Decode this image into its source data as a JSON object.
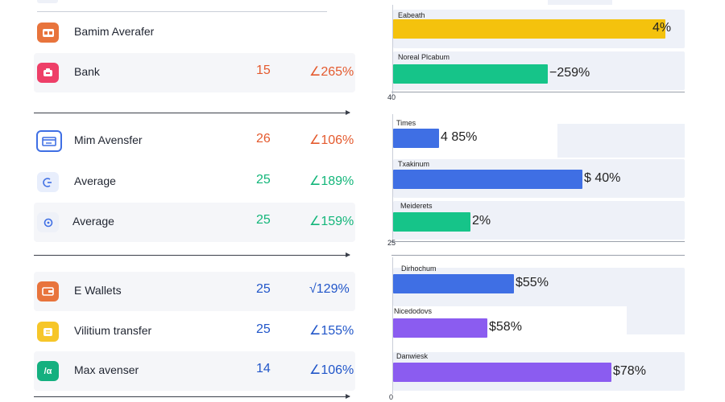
{
  "colors": {
    "green": "#13b67a",
    "red": "#e45a2e",
    "blue": "#2156c9",
    "bar_yellow": "#f4c20d",
    "bar_green": "#16c489",
    "bar_blue": "#3f6fe4",
    "bar_purple": "#8b5cf0"
  },
  "list": {
    "rows": [
      {
        "icon": "bank-transfer-icon",
        "label": "Bamim Averafer",
        "count": "",
        "pct": ""
      },
      {
        "icon": "bank-icon",
        "label": "Bank",
        "count": "15",
        "pct": "∠265%"
      },
      {
        "icon": "card-icon",
        "label": "Mim Avensfer",
        "count": "26",
        "pct": "∠106%"
      },
      {
        "icon": "average-icon",
        "label": "Average",
        "count": "25",
        "pct": "∠189%"
      },
      {
        "icon": "average-circle-icon",
        "label": "Average",
        "count": "25",
        "pct": "∠159%"
      },
      {
        "icon": "wallet-icon",
        "label": "E Wallets",
        "count": "25",
        "pct": "√129%"
      },
      {
        "icon": "transfer-icon",
        "label": "Vilitium transfer",
        "count": "25",
        "pct": "∠155%"
      },
      {
        "icon": "max-icon",
        "label": "Max avenser",
        "count": "14",
        "pct": "∠106%"
      }
    ]
  },
  "chart_data": {
    "type": "bar",
    "orientation": "horizontal",
    "groups": [
      {
        "axis_label": "40",
        "bars": [
          {
            "category": "Eabeath",
            "value": 95,
            "label": "4%"
          },
          {
            "category": "Noreal Plcabum",
            "value": 54,
            "label": "−259%"
          }
        ]
      },
      {
        "axis_label": "25",
        "bars": [
          {
            "category": "Times",
            "value": 16,
            "label": "4 85%"
          },
          {
            "category": "Txakinum",
            "value": 66,
            "label": "$ 40%"
          },
          {
            "category": "Meiderets",
            "value": 27,
            "label": "2%"
          }
        ]
      },
      {
        "axis_label": "0",
        "bars": [
          {
            "category": "Dirhochum",
            "value": 42,
            "label": "$55%"
          },
          {
            "category": "Nicedodovs",
            "value": 33,
            "label": "$58%"
          },
          {
            "category": "Danwiesk",
            "value": 76,
            "label": "$78%"
          }
        ]
      }
    ],
    "xlim": [
      0,
      100
    ]
  }
}
